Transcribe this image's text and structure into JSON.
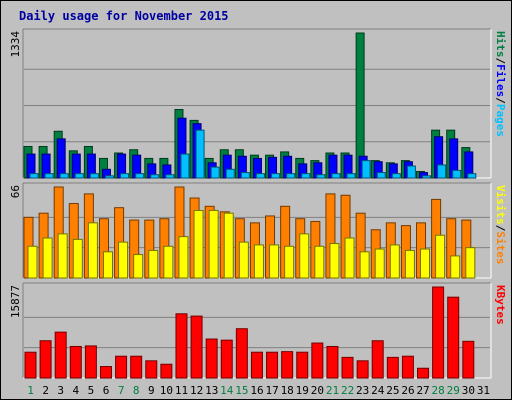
{
  "chart_data": [
    {
      "type": "bar",
      "title": "Daily usage for November 2015",
      "panel": "pages-files-hits",
      "y_max_label": "1334",
      "ylim": [
        0,
        1334
      ],
      "grid": true,
      "x": [
        "1",
        "2",
        "3",
        "4",
        "5",
        "6",
        "7",
        "8",
        "9",
        "10",
        "11",
        "12",
        "13",
        "14",
        "15",
        "16",
        "17",
        "18",
        "19",
        "20",
        "21",
        "22",
        "23",
        "24",
        "25",
        "26",
        "27",
        "28",
        "29",
        "30",
        "31"
      ],
      "x_label_colors": [
        "#008040",
        "#000000",
        "#000000",
        "#000000",
        "#000000",
        "#000000",
        "#008040",
        "#008040",
        "#000000",
        "#000000",
        "#000000",
        "#000000",
        "#000000",
        "#008040",
        "#008040",
        "#000000",
        "#000000",
        "#000000",
        "#000000",
        "#000000",
        "#008040",
        "#008040",
        "#000000",
        "#000000",
        "#000000",
        "#000000",
        "#000000",
        "#008040",
        "#008040",
        "#000000",
        "#000000"
      ],
      "series": [
        {
          "name": "Hits",
          "color": "#008040",
          "values": [
            290,
            290,
            430,
            250,
            290,
            180,
            230,
            260,
            180,
            180,
            630,
            530,
            180,
            260,
            260,
            210,
            210,
            240,
            180,
            160,
            230,
            230,
            1334,
            160,
            140,
            160,
            60,
            440,
            440,
            280,
            0
          ]
        },
        {
          "name": "Files",
          "color": "#0000ff",
          "values": [
            220,
            220,
            360,
            220,
            220,
            80,
            220,
            210,
            130,
            120,
            550,
            500,
            140,
            210,
            200,
            180,
            190,
            200,
            130,
            140,
            210,
            210,
            200,
            150,
            130,
            150,
            50,
            380,
            360,
            240,
            0
          ]
        },
        {
          "name": "Pages",
          "color": "#00c0ff",
          "values": [
            40,
            40,
            40,
            40,
            40,
            20,
            40,
            40,
            30,
            30,
            220,
            440,
            100,
            80,
            50,
            40,
            40,
            40,
            40,
            30,
            40,
            40,
            160,
            50,
            40,
            110,
            20,
            120,
            70,
            40,
            0
          ]
        }
      ],
      "legend": [
        "Pages",
        "Files",
        "Hits"
      ],
      "legend_colors": [
        "#00c0ff",
        "#0000ff",
        "#008040"
      ]
    },
    {
      "type": "bar",
      "panel": "visits-sites",
      "y_max_label": "66",
      "ylim": [
        0,
        66
      ],
      "grid": true,
      "series": [
        {
          "name": "Visits",
          "color": "#ff8000",
          "values": [
            44,
            47,
            66,
            54,
            61,
            43,
            51,
            42,
            42,
            43,
            66,
            58,
            52,
            48,
            43,
            40,
            45,
            52,
            43,
            41,
            61,
            60,
            47,
            35,
            40,
            38,
            40,
            57,
            43,
            42,
            0
          ]
        },
        {
          "name": "Sites",
          "color": "#ffff00",
          "values": [
            23,
            29,
            32,
            28,
            40,
            19,
            26,
            17,
            20,
            23,
            30,
            49,
            49,
            47,
            26,
            24,
            24,
            23,
            32,
            23,
            25,
            29,
            19,
            21,
            24,
            20,
            21,
            31,
            16,
            22,
            0
          ]
        }
      ],
      "legend": [
        "Sites",
        "Visits"
      ],
      "legend_colors": [
        "#ff8000",
        "#ffff00"
      ]
    },
    {
      "type": "bar",
      "panel": "kbytes",
      "y_max_label": "15877",
      "ylim": [
        0,
        15877
      ],
      "grid": true,
      "series": [
        {
          "name": "KBytes",
          "color": "#ff0000",
          "values": [
            4500,
            6500,
            8000,
            5500,
            5600,
            2000,
            3800,
            3800,
            3000,
            2400,
            11200,
            10800,
            6800,
            6600,
            8600,
            4500,
            4500,
            4600,
            4500,
            6100,
            5500,
            3600,
            3000,
            6500,
            3600,
            3800,
            1700,
            15877,
            14100,
            6400,
            0
          ]
        }
      ],
      "legend": [
        "KBytes"
      ],
      "legend_colors": [
        "#ff0000"
      ]
    }
  ]
}
